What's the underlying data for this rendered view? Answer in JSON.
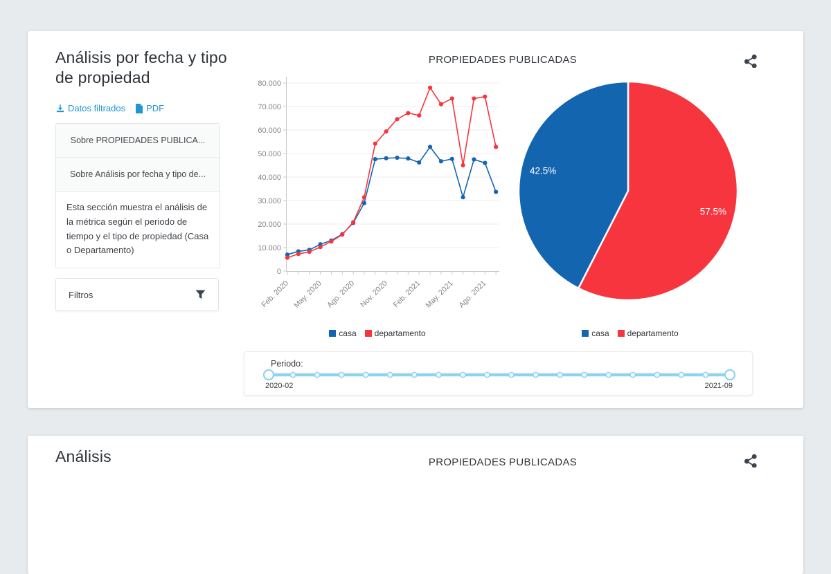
{
  "colors": {
    "casa": "#1365b0",
    "departamento": "#f6353f",
    "link": "#2096d3",
    "slider": "#8dd3f3",
    "grid": "#ededee",
    "axis": "#c8c8c8",
    "axis_text": "#848484",
    "icon_dark": "#3c454d"
  },
  "card1": {
    "title": "Análisis por fecha y tipo de propiedad",
    "link_datos": "Datos filtrados",
    "link_pdf": "PDF",
    "accordion": [
      "Sobre PROPIEDADES PUBLICA...",
      "Sobre Análisis por fecha y tipo de..."
    ],
    "description": "Esta sección muestra el análisis de la métrica según el periodo de tiempo y el tipo de propiedad (Casa o Departamento)",
    "filters_label": "Filtros",
    "chart_title": "PROPIEDADES PUBLICADAS"
  },
  "slider": {
    "label": "Periodo:",
    "start_label": "2020-02",
    "end_label": "2021-09",
    "stops": 20
  },
  "card2": {
    "title": "Análisis",
    "chart_title": "PROPIEDADES PUBLICADAS"
  },
  "chart_data": [
    {
      "type": "line",
      "title": "PROPIEDADES PUBLICADAS",
      "x": [
        "2020-02",
        "2020-03",
        "2020-04",
        "2020-05",
        "2020-06",
        "2020-07",
        "2020-08",
        "2020-09",
        "2020-10",
        "2020-11",
        "2020-12",
        "2021-01",
        "2021-02",
        "2021-03",
        "2021-04",
        "2021-05",
        "2021-06",
        "2021-07",
        "2021-08",
        "2021-09"
      ],
      "x_tick_labels": [
        "Feb. 2020",
        "May. 2020",
        "Ago. 2020",
        "Nov. 2020",
        "Feb. 2021",
        "May. 2021",
        "Ago. 2021"
      ],
      "x_tick_every": 3,
      "series": [
        {
          "name": "casa",
          "color": "#1365b0",
          "values": [
            7000,
            8400,
            9000,
            11400,
            13000,
            15700,
            20500,
            28900,
            47600,
            48000,
            48200,
            47900,
            46200,
            52800,
            46700,
            47700,
            31400,
            47500,
            46000,
            33700
          ]
        },
        {
          "name": "departamento",
          "color": "#f6353f",
          "values": [
            5700,
            7300,
            8200,
            10200,
            12600,
            15500,
            20800,
            31400,
            54200,
            59400,
            64600,
            67200,
            66200,
            78000,
            71000,
            73400,
            45000,
            73400,
            74200,
            52800
          ]
        }
      ],
      "ylim": [
        0,
        80000
      ],
      "ytick_interval": 10000,
      "grid": "horizontal",
      "legend_position": "bottom"
    },
    {
      "type": "pie",
      "title": "PROPIEDADES PUBLICADAS",
      "start_angle": "top",
      "direction": "clockwise",
      "slices": [
        {
          "label": "casa",
          "value": 42.5,
          "display": "42.5%",
          "color": "#1365b0"
        },
        {
          "label": "departamento",
          "value": 57.5,
          "display": "57.5%",
          "color": "#f6353f"
        }
      ],
      "legend_position": "bottom"
    }
  ]
}
